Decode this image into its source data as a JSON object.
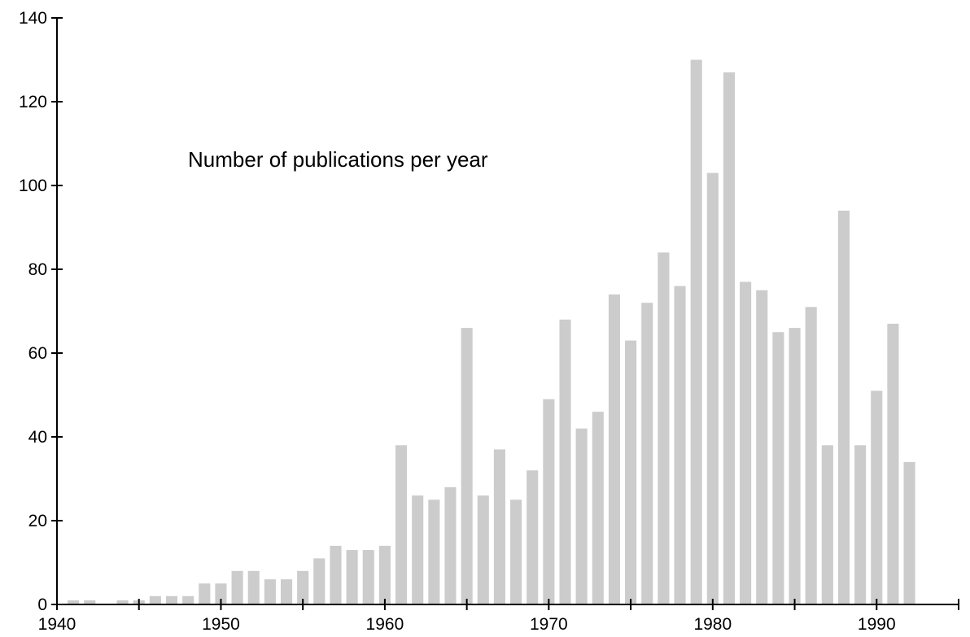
{
  "chart_data": {
    "type": "bar",
    "title": "Number of publications per year",
    "xlabel": "",
    "ylabel": "",
    "xlim": [
      1940,
      1995
    ],
    "ylim": [
      0,
      140
    ],
    "x_ticks": [
      "1940",
      "1950",
      "1960",
      "1970",
      "1980",
      "1990"
    ],
    "y_ticks": [
      "0",
      "20",
      "40",
      "60",
      "80",
      "100",
      "120",
      "140"
    ],
    "grid": false,
    "bar_color": "#cccccc",
    "categories": [
      1941,
      1942,
      1944,
      1945,
      1946,
      1947,
      1948,
      1949,
      1950,
      1951,
      1952,
      1953,
      1954,
      1955,
      1956,
      1957,
      1958,
      1959,
      1960,
      1961,
      1962,
      1963,
      1964,
      1965,
      1966,
      1967,
      1968,
      1969,
      1970,
      1971,
      1972,
      1973,
      1974,
      1975,
      1976,
      1977,
      1978,
      1979,
      1980,
      1981,
      1982,
      1983,
      1984,
      1985,
      1986,
      1987,
      1988,
      1989,
      1990,
      1991,
      1992
    ],
    "values": [
      1,
      1,
      1,
      1,
      2,
      2,
      2,
      5,
      5,
      8,
      8,
      6,
      6,
      8,
      11,
      14,
      13,
      13,
      14,
      38,
      26,
      25,
      28,
      66,
      26,
      37,
      25,
      32,
      49,
      68,
      42,
      46,
      74,
      63,
      72,
      84,
      76,
      130,
      103,
      127,
      77,
      75,
      65,
      66,
      71,
      38,
      94,
      38,
      51,
      67,
      34
    ]
  }
}
